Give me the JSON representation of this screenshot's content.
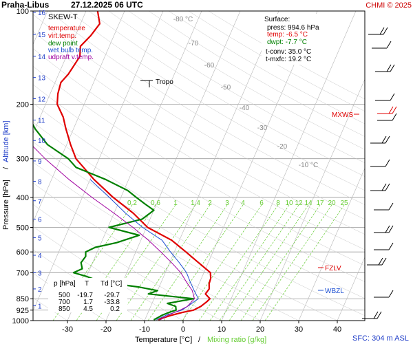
{
  "header": {
    "station": "Praha-Libus",
    "datetime": "27.12.2025 06 UTC",
    "credit": "CHMI © 2025"
  },
  "legend": {
    "title": "SKEW-T",
    "items": [
      {
        "label": "temperature",
        "color": "#e00000"
      },
      {
        "label": "virt.temp.",
        "color": "#e00000"
      },
      {
        "label": "dew point",
        "color": "#008000"
      },
      {
        "label": "wet bulb temp.",
        "color": "#1e50d2"
      },
      {
        "label": "udpraft v.temp.",
        "color": "#a000a0"
      }
    ]
  },
  "surface": {
    "title": "Surface:",
    "press": "press: 994.6 hPa",
    "temp": "temp: -6.5 °C",
    "dwpt": "dwpt: -7.7 °C",
    "tconv": "t-conv: 35.0 °C",
    "tmxfc": "t-mxfc: 19.2 °C"
  },
  "table": {
    "headers": [
      "p [hPa]",
      "T",
      "Td [°C]"
    ],
    "rows": [
      [
        "500",
        "-19.7",
        "-29.7"
      ],
      [
        "700",
        "1.7",
        "-33.8"
      ],
      [
        "850",
        "4.5",
        "0.2"
      ]
    ]
  },
  "labels": {
    "tropo": "Tropo",
    "mxws": "MXWS",
    "fzlv": "FZLV",
    "wbzl": "WBZL",
    "sfc": "SFC: 304 m ASL",
    "ylabel_pressure": "Pressure [hPa]",
    "ylabel_sep": "/",
    "ylabel_altitude": "Altitude [km]",
    "xlabel_temp": "Temperature [°C]",
    "xlabel_sep": "/",
    "xlabel_mix": "Mixing ratio [g/kg]"
  },
  "colors": {
    "temperature": "#e00000",
    "dewpoint": "#008000",
    "wetbulb": "#1e50d2",
    "parcel": "#a000a0",
    "mixing": "#66cc33",
    "altitude": "#1e3cc8"
  },
  "chart_data": {
    "type": "line",
    "title": "",
    "xlabel": "Temperature [°C] / Mixing ratio [g/kg]",
    "ylabel": "Pressure [hPa] / Altitude [km]",
    "log_scale_y": true,
    "xlim": [
      -40,
      40
    ],
    "ylim": [
      1000,
      100
    ],
    "x_ticks": [
      -30,
      -20,
      -10,
      0,
      10,
      20,
      30,
      40
    ],
    "pressure_ticks": [
      100,
      200,
      300,
      400,
      500,
      600,
      700,
      850,
      925,
      1000
    ],
    "altitude_ticks": [
      "1",
      "2",
      "3",
      "4",
      "5",
      "6",
      "7",
      "8",
      "9",
      "10",
      "11",
      "12",
      "13",
      "14",
      "15",
      "16"
    ],
    "altitude_positions_hpa": [
      895,
      790,
      700,
      615,
      540,
      470,
      410,
      355,
      305,
      262,
      225,
      192,
      164,
      140,
      119,
      101
    ],
    "mixing_ratio_labels": [
      "0.2",
      "0.6",
      "1",
      "1.4",
      "2",
      "3",
      "4",
      "6",
      "8",
      "10",
      "12",
      "14",
      "17",
      "20",
      "25"
    ],
    "mixing_ratio_label_x": [
      192,
      226,
      255,
      284,
      305,
      330,
      353,
      380,
      404,
      420,
      434,
      448,
      465,
      482,
      500
    ],
    "isotherm_labels": [
      "-80 °C",
      "-70",
      "-60",
      "-50",
      "-40",
      "-30",
      "-20",
      "-10 °C"
    ],
    "series": [
      {
        "name": "temperature",
        "points": [
          [
            994.6,
            -6.5
          ],
          [
            980,
            -5.5
          ],
          [
            960,
            -3.5
          ],
          [
            940,
            -1.0
          ],
          [
            925,
            1.5
          ],
          [
            900,
            3.0
          ],
          [
            870,
            4.0
          ],
          [
            850,
            4.5
          ],
          [
            820,
            2.8
          ],
          [
            790,
            3.2
          ],
          [
            760,
            2.6
          ],
          [
            730,
            2.4
          ],
          [
            700,
            1.7
          ],
          [
            650,
            -2.5
          ],
          [
            600,
            -7.0
          ],
          [
            550,
            -12.0
          ],
          [
            500,
            -19.7
          ],
          [
            450,
            -25.0
          ],
          [
            400,
            -32.0
          ],
          [
            350,
            -39.0
          ],
          [
            300,
            -46.0
          ],
          [
            270,
            -49.0
          ],
          [
            240,
            -52.0
          ],
          [
            220,
            -54.0
          ],
          [
            200,
            -57.0
          ],
          [
            185,
            -58.0
          ],
          [
            170,
            -58.5
          ],
          [
            160,
            -57.5
          ],
          [
            150,
            -57.0
          ],
          [
            140,
            -56.5
          ],
          [
            130,
            -57.5
          ],
          [
            120,
            -56.0
          ],
          [
            110,
            -55.0
          ],
          [
            100,
            -57.0
          ]
        ]
      },
      {
        "name": "dew point",
        "points": [
          [
            994.6,
            -7.7
          ],
          [
            980,
            -7.0
          ],
          [
            960,
            -6.0
          ],
          [
            940,
            -4.5
          ],
          [
            925,
            -3.0
          ],
          [
            900,
            -3.5
          ],
          [
            880,
            -6.0
          ],
          [
            850,
            0.2
          ],
          [
            820,
            -12.0
          ],
          [
            800,
            -10.0
          ],
          [
            780,
            -15.0
          ],
          [
            760,
            -22.0
          ],
          [
            740,
            -27.0
          ],
          [
            720,
            -30.0
          ],
          [
            700,
            -33.8
          ],
          [
            680,
            -32.0
          ],
          [
            650,
            -33.0
          ],
          [
            620,
            -32.5
          ],
          [
            600,
            -33.0
          ],
          [
            580,
            -31.0
          ],
          [
            560,
            -26.0
          ],
          [
            530,
            -21.0
          ],
          [
            500,
            -29.7
          ],
          [
            470,
            -22.0
          ],
          [
            440,
            -20.0
          ],
          [
            420,
            -23.0
          ],
          [
            400,
            -26.0
          ],
          [
            380,
            -29.0
          ],
          [
            350,
            -36.0
          ],
          [
            320,
            -45.0
          ],
          [
            300,
            -48.0
          ],
          [
            270,
            -55.0
          ],
          [
            240,
            -60.0
          ],
          [
            200,
            -66.0
          ],
          [
            170,
            -70.0
          ],
          [
            150,
            -74.0
          ],
          [
            130,
            -80.0
          ],
          [
            115,
            -84.0
          ],
          [
            100,
            -86.0
          ]
        ]
      },
      {
        "name": "wet bulb temp.",
        "points": [
          [
            994.6,
            -7.0
          ],
          [
            960,
            -5.0
          ],
          [
            925,
            -1.5
          ],
          [
            900,
            -0.5
          ],
          [
            850,
            1.5
          ],
          [
            800,
            -0.5
          ],
          [
            750,
            -2.5
          ],
          [
            700,
            -4.5
          ],
          [
            650,
            -7.5
          ],
          [
            600,
            -11.0
          ],
          [
            550,
            -14.5
          ],
          [
            500,
            -21.0
          ],
          [
            450,
            -27.0
          ],
          [
            400,
            -33.0
          ],
          [
            350,
            -40.0
          ]
        ]
      },
      {
        "name": "udpraft v.temp.",
        "points": [
          [
            994.6,
            -6.0
          ],
          [
            960,
            -4.5
          ],
          [
            925,
            -2.0
          ],
          [
            900,
            -0.5
          ],
          [
            850,
            0.5
          ],
          [
            800,
            -1.0
          ],
          [
            750,
            -3.5
          ],
          [
            700,
            -6.0
          ],
          [
            650,
            -9.5
          ],
          [
            600,
            -13.5
          ],
          [
            550,
            -18.0
          ],
          [
            500,
            -23.5
          ],
          [
            450,
            -30.0
          ],
          [
            400,
            -37.5
          ],
          [
            350,
            -45.5
          ],
          [
            300,
            -54.0
          ],
          [
            250,
            -63.0
          ],
          [
            200,
            -73.0
          ],
          [
            170,
            -79.5
          ]
        ]
      }
    ]
  }
}
